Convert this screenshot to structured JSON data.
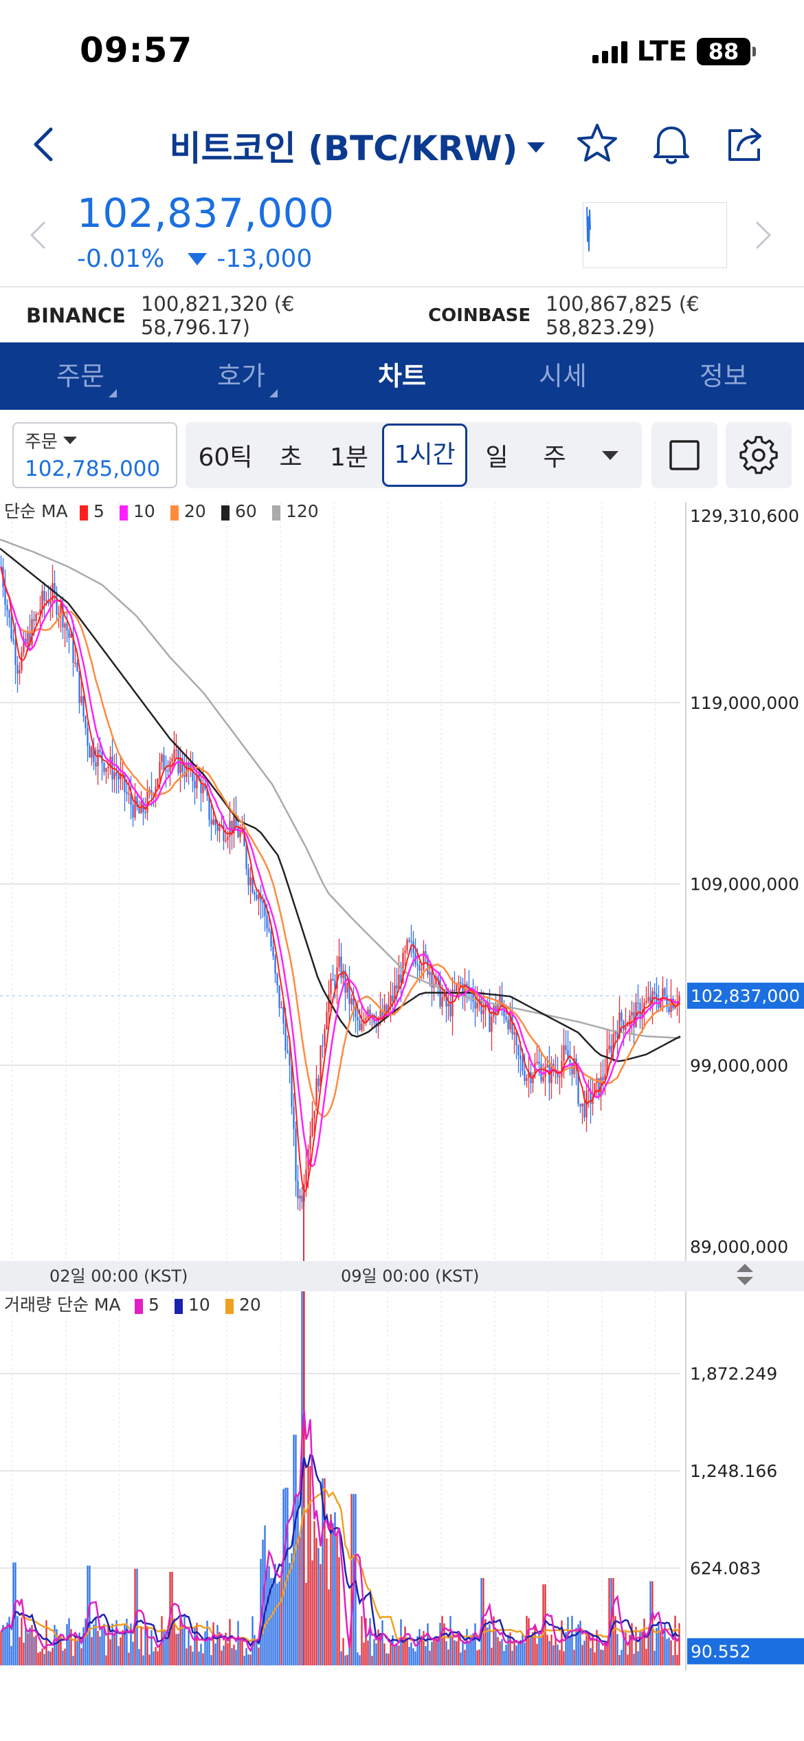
{
  "status_bar": {
    "time": "09:57",
    "network": "LTE",
    "battery": "88"
  },
  "header": {
    "title": "비트코인 (BTC/KRW)"
  },
  "price": {
    "current": "102,837,000",
    "change_pct": "-0.01%",
    "change_abs": "-13,000"
  },
  "exchanges": [
    {
      "name": "BINANCE",
      "value": "100,821,320 (€ 58,796.17)"
    },
    {
      "name": "COINBASE",
      "value": "100,867,825 (€ 58,823.29)"
    }
  ],
  "tabs": [
    {
      "label": "주문",
      "active": false,
      "has_menu": true
    },
    {
      "label": "호가",
      "active": false,
      "has_menu": true
    },
    {
      "label": "차트",
      "active": true,
      "has_menu": false
    },
    {
      "label": "시세",
      "active": false,
      "has_menu": false
    },
    {
      "label": "정보",
      "active": false,
      "has_menu": false
    }
  ],
  "toolbar": {
    "order_label": "주문",
    "order_value": "102,785,000",
    "intervals": [
      "60틱",
      "초",
      "1분",
      "1시간",
      "일",
      "주"
    ],
    "selected_interval": "1시간"
  },
  "colors": {
    "brand_navy": "#0c3a8f",
    "accent_blue": "#1b6fe0",
    "candle_up": "#e0303a",
    "candle_down": "#2f73e6",
    "ma5": "#ff1f1f",
    "ma10": "#ff20ff",
    "ma20": "#ff8a3c",
    "ma60": "#222222",
    "ma120": "#aaaaaa",
    "vol_ma5": "#e020c0",
    "vol_ma10": "#1a22b0",
    "vol_ma20": "#f0a020"
  },
  "chart_data": [
    {
      "type": "candlestick",
      "legend": {
        "prefix": "단순 MA",
        "entries": [
          {
            "label": "5",
            "color": "#ff1f1f"
          },
          {
            "label": "10",
            "color": "#ff20ff"
          },
          {
            "label": "20",
            "color": "#ff8a3c"
          },
          {
            "label": "60",
            "color": "#222222"
          },
          {
            "label": "120",
            "color": "#aaaaaa"
          }
        ]
      },
      "y_ticks": [
        "129,310,600",
        "119,000,000",
        "109,000,000",
        "99,000,000",
        "89,000,000"
      ],
      "y_tick_values": [
        129310600,
        119000000,
        109000000,
        99000000,
        89000000
      ],
      "ylim": [
        89000000,
        129310600
      ],
      "current_price_label": "102,837,000",
      "current_price": 102837000,
      "x_labels": [
        "02일 00:00 (KST)",
        "09일 00:00 (KST)"
      ],
      "price_path": [
        [
          0,
          126.5
        ],
        [
          0.012,
          123.5
        ],
        [
          0.025,
          121.0
        ],
        [
          0.04,
          122.5
        ],
        [
          0.06,
          124.5
        ],
        [
          0.075,
          125.0
        ],
        [
          0.09,
          124.0
        ],
        [
          0.105,
          122.0
        ],
        [
          0.118,
          119.0
        ],
        [
          0.13,
          116.5
        ],
        [
          0.145,
          116.0
        ],
        [
          0.16,
          115.5
        ],
        [
          0.175,
          114.8
        ],
        [
          0.19,
          113.5
        ],
        [
          0.205,
          112.8
        ],
        [
          0.22,
          113.8
        ],
        [
          0.235,
          115.5
        ],
        [
          0.25,
          116.0
        ],
        [
          0.265,
          115.6
        ],
        [
          0.28,
          115.0
        ],
        [
          0.295,
          114.5
        ],
        [
          0.31,
          112.5
        ],
        [
          0.325,
          112.0
        ],
        [
          0.34,
          112.3
        ],
        [
          0.355,
          111.6
        ],
        [
          0.365,
          109.5
        ],
        [
          0.38,
          108.5
        ],
        [
          0.395,
          106.5
        ],
        [
          0.405,
          103.5
        ],
        [
          0.418,
          101.0
        ],
        [
          0.428,
          97.5
        ],
        [
          0.435,
          92.5
        ],
        [
          0.442,
          91.5
        ],
        [
          0.45,
          94.0
        ],
        [
          0.46,
          96.5
        ],
        [
          0.47,
          99.0
        ],
        [
          0.48,
          102.5
        ],
        [
          0.49,
          103.5
        ],
        [
          0.5,
          104.5
        ],
        [
          0.51,
          103.0
        ],
        [
          0.52,
          102.0
        ],
        [
          0.53,
          100.5
        ],
        [
          0.54,
          102.5
        ],
        [
          0.55,
          101.8
        ],
        [
          0.56,
          101.5
        ],
        [
          0.57,
          102.0
        ],
        [
          0.585,
          103.5
        ],
        [
          0.6,
          105.5
        ],
        [
          0.615,
          105.0
        ],
        [
          0.63,
          104.5
        ],
        [
          0.645,
          103.0
        ],
        [
          0.66,
          102.0
        ],
        [
          0.675,
          103.5
        ],
        [
          0.69,
          103.0
        ],
        [
          0.705,
          102.5
        ],
        [
          0.72,
          101.5
        ],
        [
          0.735,
          102.5
        ],
        [
          0.75,
          101.5
        ],
        [
          0.76,
          99.5
        ],
        [
          0.775,
          98.5
        ],
        [
          0.79,
          99.0
        ],
        [
          0.805,
          98.5
        ],
        [
          0.82,
          98.8
        ],
        [
          0.83,
          99.5
        ],
        [
          0.845,
          99.0
        ],
        [
          0.855,
          96.5
        ],
        [
          0.865,
          97.0
        ],
        [
          0.875,
          97.5
        ],
        [
          0.885,
          98.0
        ],
        [
          0.895,
          99.5
        ],
        [
          0.905,
          101.0
        ],
        [
          0.915,
          101.5
        ],
        [
          0.93,
          101.5
        ],
        [
          0.945,
          102.2
        ],
        [
          0.96,
          102.5
        ],
        [
          0.975,
          102.8
        ],
        [
          0.985,
          102.6
        ],
        [
          1.0,
          102.84
        ]
      ],
      "ma60_path": [
        [
          0,
          127.5
        ],
        [
          0.05,
          126.0
        ],
        [
          0.1,
          124.5
        ],
        [
          0.15,
          122.0
        ],
        [
          0.2,
          119.5
        ],
        [
          0.25,
          117.0
        ],
        [
          0.3,
          115.0
        ],
        [
          0.35,
          112.5
        ],
        [
          0.38,
          112.0
        ],
        [
          0.41,
          110.5
        ],
        [
          0.44,
          107.0
        ],
        [
          0.47,
          103.5
        ],
        [
          0.5,
          101.5
        ],
        [
          0.52,
          100.5
        ],
        [
          0.54,
          100.8
        ],
        [
          0.58,
          102.0
        ],
        [
          0.62,
          103.0
        ],
        [
          0.65,
          103.0
        ],
        [
          0.7,
          103.0
        ],
        [
          0.75,
          102.8
        ],
        [
          0.8,
          101.8
        ],
        [
          0.85,
          100.8
        ],
        [
          0.88,
          99.6
        ],
        [
          0.91,
          99.2
        ],
        [
          0.95,
          99.6
        ],
        [
          0.98,
          100.2
        ],
        [
          1.0,
          100.6
        ]
      ],
      "ma120_path": [
        [
          0,
          128.0
        ],
        [
          0.05,
          127.3
        ],
        [
          0.1,
          126.5
        ],
        [
          0.15,
          125.5
        ],
        [
          0.2,
          123.8
        ],
        [
          0.25,
          121.5
        ],
        [
          0.3,
          119.5
        ],
        [
          0.35,
          117.0
        ],
        [
          0.4,
          114.5
        ],
        [
          0.45,
          111.0
        ],
        [
          0.48,
          108.6
        ],
        [
          0.52,
          107.0
        ],
        [
          0.56,
          105.5
        ],
        [
          0.6,
          104.0
        ],
        [
          0.65,
          103.2
        ],
        [
          0.7,
          102.6
        ],
        [
          0.75,
          102.2
        ],
        [
          0.8,
          101.8
        ],
        [
          0.85,
          101.4
        ],
        [
          0.9,
          100.9
        ],
        [
          0.95,
          100.6
        ],
        [
          1.0,
          100.5
        ]
      ]
    },
    {
      "type": "bar",
      "legend": {
        "prefix": "거래량 단순 MA",
        "entries": [
          {
            "label": "5",
            "color": "#e020c0"
          },
          {
            "label": "10",
            "color": "#1a22b0"
          },
          {
            "label": "20",
            "color": "#f0a020"
          }
        ]
      },
      "y_ticks": [
        "1,872.249",
        "1,248.166",
        "624.083"
      ],
      "y_tick_values": [
        1872.249,
        1248.166,
        624.083
      ],
      "current_volume_label": "90.552",
      "current_volume": 90.552,
      "ylim": [
        0,
        2400
      ],
      "spikes": [
        [
          0.02,
          660
        ],
        [
          0.13,
          640
        ],
        [
          0.2,
          620
        ],
        [
          0.25,
          600
        ],
        [
          0.4,
          560
        ],
        [
          0.42,
          1140
        ],
        [
          0.433,
          1480
        ],
        [
          0.445,
          2400
        ],
        [
          0.455,
          1280
        ],
        [
          0.475,
          1200
        ],
        [
          0.52,
          1100
        ],
        [
          0.71,
          560
        ],
        [
          0.8,
          520
        ],
        [
          0.9,
          560
        ],
        [
          0.96,
          540
        ]
      ]
    }
  ]
}
